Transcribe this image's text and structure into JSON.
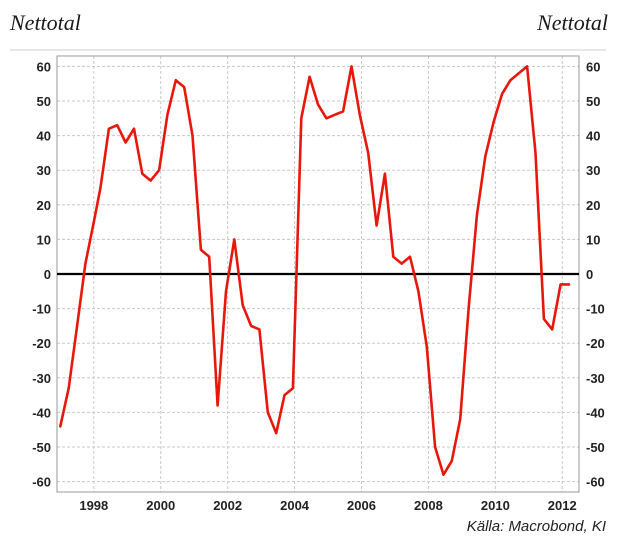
{
  "header": {
    "left_label": "Nettotal",
    "right_label": "Nettotal"
  },
  "footer": {
    "source": "Källa: Macrobond, KI"
  },
  "chart_data": {
    "type": "line",
    "title": "",
    "xlabel": "",
    "ylabel": "",
    "xlim": [
      1996.9,
      2012.5
    ],
    "ylim": [
      -63,
      63
    ],
    "x_ticks": [
      1998,
      2000,
      2002,
      2004,
      2006,
      2008,
      2010,
      2012
    ],
    "y_ticks": [
      60,
      50,
      40,
      30,
      20,
      10,
      0,
      -10,
      -20,
      -30,
      -40,
      -50,
      -60
    ],
    "grid": true,
    "legend": "none",
    "zero_line": true,
    "series": [
      {
        "color": "#e8170c",
        "x": [
          1997.0,
          1997.25,
          1997.5,
          1997.75,
          1998.0,
          1998.2,
          1998.45,
          1998.7,
          1998.95,
          1999.2,
          1999.45,
          1999.7,
          1999.95,
          2000.2,
          2000.45,
          2000.7,
          2000.95,
          2001.2,
          2001.45,
          2001.7,
          2001.95,
          2002.2,
          2002.45,
          2002.7,
          2002.95,
          2003.2,
          2003.45,
          2003.7,
          2003.95,
          2004.2,
          2004.45,
          2004.7,
          2004.95,
          2005.2,
          2005.45,
          2005.7,
          2005.95,
          2006.2,
          2006.45,
          2006.7,
          2006.95,
          2007.2,
          2007.45,
          2007.7,
          2007.95,
          2008.2,
          2008.45,
          2008.7,
          2008.95,
          2009.2,
          2009.45,
          2009.7,
          2009.95,
          2010.2,
          2010.45,
          2010.7,
          2010.95,
          2011.2,
          2011.45,
          2011.7,
          2011.95,
          2012.2
        ],
        "y": [
          -44,
          -33,
          -15,
          3,
          15,
          25,
          42,
          43,
          38,
          42,
          29,
          27,
          30,
          46,
          56,
          54,
          40,
          7,
          5,
          -38,
          -5,
          10,
          -9,
          -15,
          -16,
          -40,
          -46,
          -35,
          -33,
          45,
          57,
          49,
          45,
          46,
          47,
          60,
          46,
          35,
          14,
          29,
          5,
          3,
          5,
          -5,
          -21,
          -50,
          -58,
          -54,
          -42,
          -10,
          17,
          34,
          44,
          52,
          56,
          58,
          60,
          35,
          -13,
          -16,
          -3,
          -3
        ]
      }
    ]
  }
}
